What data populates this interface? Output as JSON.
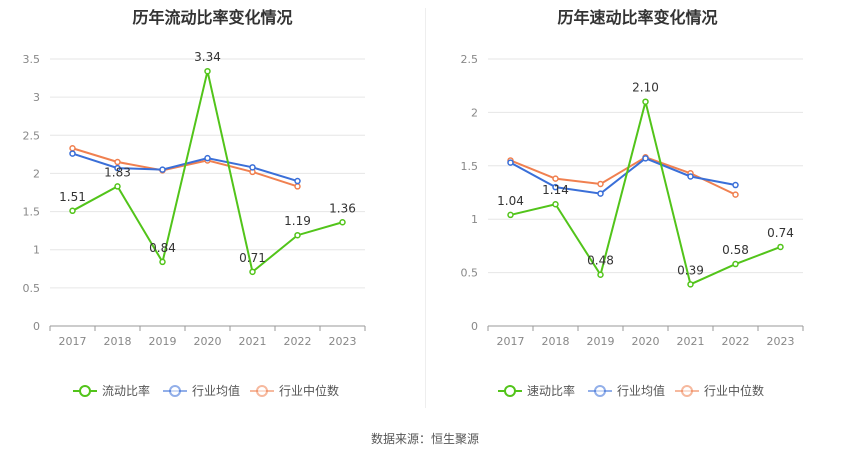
{
  "chart_data": [
    {
      "type": "line",
      "title": "历年流动比率变化情况",
      "x": [
        "2017",
        "2018",
        "2019",
        "2020",
        "2021",
        "2022",
        "2023"
      ],
      "ylim": [
        0,
        3.5
      ],
      "yticks": [
        "0",
        "0.5",
        "1",
        "1.5",
        "2",
        "2.5",
        "3",
        "3.5"
      ],
      "grid": true,
      "legend_position": "bottom",
      "series": [
        {
          "name": "流动比率",
          "color": "#52c41a",
          "values": [
            1.51,
            1.83,
            0.84,
            3.34,
            0.71,
            1.19,
            1.36
          ],
          "labels": [
            "1.51",
            "1.83",
            "0.84",
            "3.34",
            "0.71",
            "1.19",
            "1.36"
          ]
        },
        {
          "name": "行业均值",
          "color": "#3a6fd8",
          "values": [
            2.26,
            2.07,
            2.05,
            2.2,
            2.08,
            1.9,
            null
          ]
        },
        {
          "name": "行业中位数",
          "color": "#f08050",
          "values": [
            2.33,
            2.15,
            2.04,
            2.17,
            2.02,
            1.83,
            null
          ]
        }
      ]
    },
    {
      "type": "line",
      "title": "历年速动比率变化情况",
      "x": [
        "2017",
        "2018",
        "2019",
        "2020",
        "2021",
        "2022",
        "2023"
      ],
      "ylim": [
        0,
        2.5
      ],
      "yticks": [
        "0",
        "0.5",
        "1",
        "1.5",
        "2",
        "2.5"
      ],
      "grid": true,
      "legend_position": "bottom",
      "series": [
        {
          "name": "速动比率",
          "color": "#52c41a",
          "values": [
            1.04,
            1.14,
            0.48,
            2.1,
            0.39,
            0.58,
            0.74
          ],
          "labels": [
            "1.04",
            "1.14",
            "0.48",
            "2.10",
            "0.39",
            "0.58",
            "0.74"
          ]
        },
        {
          "name": "行业均值",
          "color": "#3a6fd8",
          "values": [
            1.53,
            1.3,
            1.24,
            1.57,
            1.4,
            1.32,
            null
          ]
        },
        {
          "name": "行业中位数",
          "color": "#f08050",
          "values": [
            1.55,
            1.38,
            1.33,
            1.58,
            1.43,
            1.23,
            null
          ]
        }
      ]
    }
  ],
  "footer": {
    "source": "数据来源：恒生聚源"
  }
}
